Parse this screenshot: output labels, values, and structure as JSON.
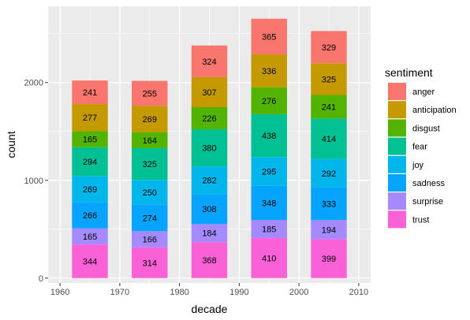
{
  "chart_data": {
    "type": "bar",
    "stacked": true,
    "xlabel": "decade",
    "ylabel": "count",
    "xlim": [
      1958,
      2012
    ],
    "ylim": [
      -50,
      2780
    ],
    "x_ticks": [
      1960,
      1970,
      1980,
      1990,
      2000,
      2010
    ],
    "y_ticks": [
      0,
      1000,
      2000
    ],
    "bar_span": [
      1962,
      1968
    ],
    "categories": [
      1965,
      1975,
      1985,
      1995,
      2005
    ],
    "legend": {
      "title": "sentiment",
      "position": "right"
    },
    "grid": true,
    "background_color": "#ebebeb",
    "grid_color": "#ffffff",
    "series": [
      {
        "name": "anger",
        "color": "#F8766D",
        "values": [
          241,
          255,
          324,
          365,
          329
        ]
      },
      {
        "name": "anticipation",
        "color": "#C49A00",
        "values": [
          277,
          269,
          307,
          336,
          325
        ]
      },
      {
        "name": "disgust",
        "color": "#53B400",
        "values": [
          165,
          164,
          226,
          276,
          241
        ]
      },
      {
        "name": "fear",
        "color": "#00C094",
        "values": [
          294,
          325,
          380,
          438,
          414
        ]
      },
      {
        "name": "joy",
        "color": "#00B6EB",
        "values": [
          269,
          250,
          282,
          295,
          292
        ]
      },
      {
        "name": "sadness",
        "color": "#06A4FF",
        "values": [
          266,
          274,
          308,
          348,
          333
        ]
      },
      {
        "name": "surprise",
        "color": "#A58AFF",
        "values": [
          165,
          166,
          184,
          185,
          194
        ]
      },
      {
        "name": "trust",
        "color": "#FB61D7",
        "values": [
          344,
          314,
          368,
          410,
          399
        ]
      }
    ]
  }
}
